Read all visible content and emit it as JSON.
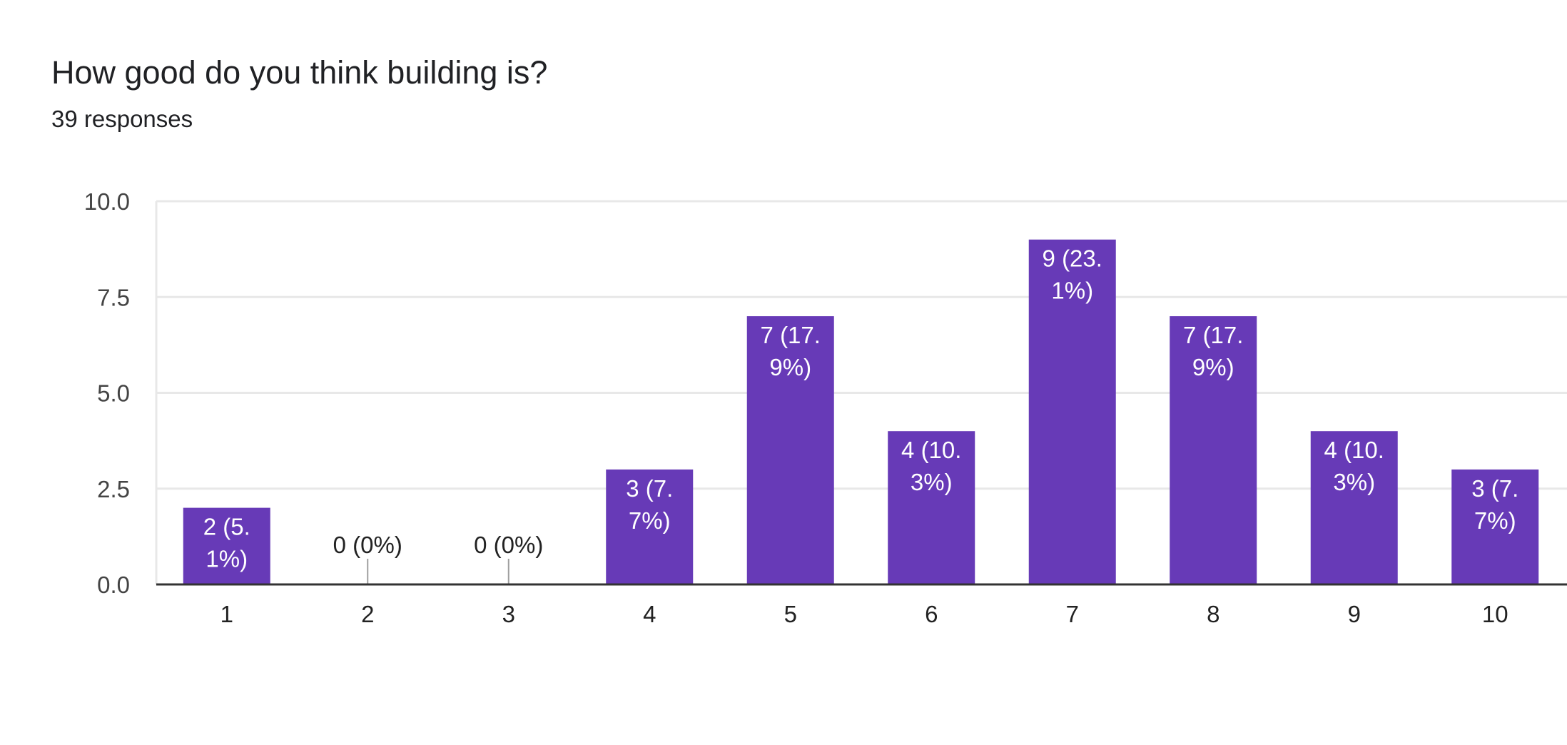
{
  "question": {
    "title": "How good do you think building is?",
    "responses_label": "39 responses"
  },
  "colors": {
    "bar": "#673ab7",
    "grid": "#e8e8e8",
    "axis": "#333333",
    "label_inside": "#ffffff",
    "label_outside": "#222222",
    "zero_tick": "#9e9e9e"
  },
  "chart_data": {
    "type": "bar",
    "categories": [
      "1",
      "2",
      "3",
      "4",
      "5",
      "6",
      "7",
      "8",
      "9",
      "10"
    ],
    "values": [
      2,
      0,
      0,
      3,
      7,
      4,
      9,
      7,
      4,
      3
    ],
    "data_labels": [
      [
        "2 (5.",
        "1%)"
      ],
      [
        "0 (0%)"
      ],
      [
        "0 (0%)"
      ],
      [
        "3 (7.",
        "7%)"
      ],
      [
        "7 (17.",
        "9%)"
      ],
      [
        "4 (10.",
        "3%)"
      ],
      [
        "9 (23.",
        "1%)"
      ],
      [
        "7 (17.",
        "9%)"
      ],
      [
        "4 (10.",
        "3%)"
      ],
      [
        "3 (7.",
        "7%)"
      ]
    ],
    "yticks": [
      "0.0",
      "2.5",
      "5.0",
      "7.5",
      "10.0"
    ],
    "ytick_values": [
      0,
      2.5,
      5,
      7.5,
      10
    ],
    "ylim": [
      0,
      10
    ],
    "title": "How good do you think building is?",
    "xlabel": "",
    "ylabel": "",
    "grid": true,
    "legend": "none"
  }
}
